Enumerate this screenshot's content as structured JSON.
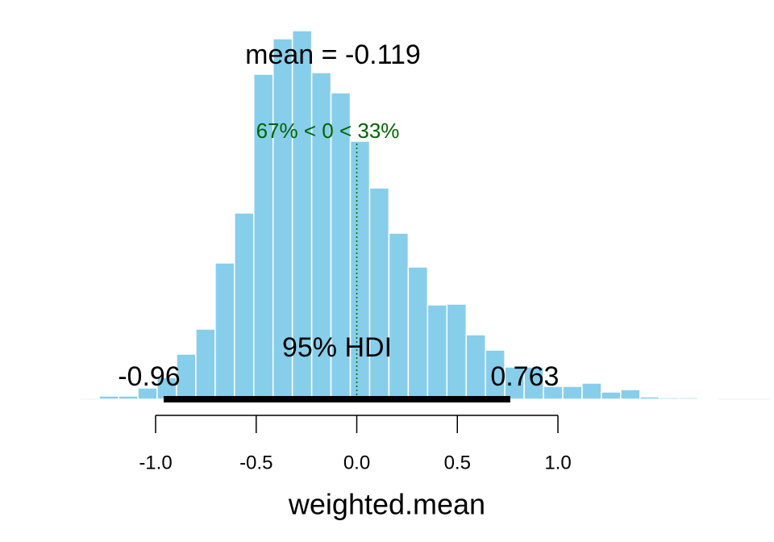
{
  "chart_data": {
    "type": "histogram",
    "bins": [
      -1.28,
      -1.184,
      -1.088,
      -0.992,
      -0.896,
      -0.8,
      -0.704,
      -0.608,
      -0.512,
      -0.416,
      -0.32,
      -0.224,
      -0.128,
      -0.032,
      0.064,
      0.16,
      0.256,
      0.352,
      0.448,
      0.544,
      0.64,
      0.736,
      0.832,
      0.928,
      1.024,
      1.12,
      1.216,
      1.312,
      1.408,
      1.504,
      1.6,
      1.696,
      1.792
    ],
    "values": [
      4,
      4,
      14,
      27,
      56,
      87,
      169,
      231,
      403,
      447,
      457,
      405,
      380,
      320,
      262,
      206,
      164,
      117,
      118,
      80,
      61,
      40,
      40,
      16,
      16,
      20,
      9,
      12,
      3,
      2,
      2,
      1
    ],
    "color": "#87ceeb",
    "ylim": [
      0,
      457
    ],
    "xlim": [
      -1.0,
      1.0
    ],
    "xticks": [
      {
        "value": -1.0,
        "label": "-1.0"
      },
      -0.5,
      {
        "value": 0,
        "label": "0.0"
      },
      0.5,
      {
        "value": 1.0,
        "label": "1.0"
      }
    ],
    "x_label": "weighted.mean",
    "mean_label": "mean = -0.119",
    "comp_value": 0,
    "comp_color": "#006400",
    "comp_label": "67% < 0 < 33%",
    "hdi": [
      -0.96,
      0.763
    ],
    "hdi_label": "95% HDI"
  }
}
